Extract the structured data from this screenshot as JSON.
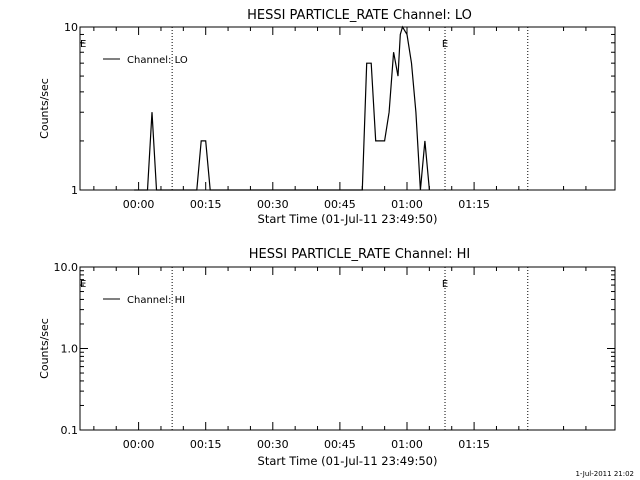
{
  "footer_timestamp": "1-Jul-2011 21:02",
  "chart_data": [
    {
      "type": "line",
      "title": "HESSI PARTICLE_RATE Channel: LO",
      "xlabel": "Start Time (01-Jul-11 23:49:50)",
      "ylabel": "Counts/sec",
      "yscale": "log",
      "ylim": [
        1,
        10
      ],
      "xlim_minutes": [
        -13,
        1.93
      ],
      "xlim_note": "minutes relative to 01:00 not printed; x axis shown as times",
      "x_ticks": [
        "00:00",
        "00:15",
        "00:30",
        "00:45",
        "01:00",
        "01:15"
      ],
      "y_ticks": [
        "1",
        "10"
      ],
      "legend": {
        "position": "top-left",
        "label": "Channel: LO"
      },
      "markers": [
        {
          "label": "E",
          "at": "start"
        },
        {
          "label": "E",
          "at": "eclipse"
        }
      ],
      "series": [
        {
          "name": "Channel: LO",
          "points": [
            [
              "23:59",
              1
            ],
            [
              "00:02",
              1
            ],
            [
              "00:03",
              3
            ],
            [
              "00:04",
              1
            ],
            [
              "00:13",
              1
            ],
            [
              "00:14",
              2
            ],
            [
              "00:15",
              2
            ],
            [
              "00:16",
              1
            ],
            [
              "00:50",
              1
            ],
            [
              "00:51",
              6
            ],
            [
              "00:52",
              6
            ],
            [
              "00:53",
              2
            ],
            [
              "00:55",
              2
            ],
            [
              "00:56",
              3
            ],
            [
              "00:57",
              7
            ],
            [
              "00:58",
              5
            ],
            [
              "00:58.5",
              9
            ],
            [
              "00:59",
              10
            ],
            [
              "01:00",
              9
            ],
            [
              "01:01",
              6
            ],
            [
              "01:02",
              3
            ],
            [
              "01:03",
              1
            ],
            [
              "01:04",
              2
            ],
            [
              "01:05",
              1
            ]
          ]
        }
      ]
    },
    {
      "type": "line",
      "title": "HESSI PARTICLE_RATE Channel: HI",
      "xlabel": "Start Time (01-Jul-11 23:49:50)",
      "ylabel": "Counts/sec",
      "yscale": "log",
      "ylim": [
        0.1,
        10
      ],
      "x_ticks": [
        "00:00",
        "00:15",
        "00:30",
        "00:45",
        "01:00",
        "01:15"
      ],
      "y_ticks": [
        "0.1",
        "1.0",
        "10.0"
      ],
      "legend": {
        "position": "top-left",
        "label": "Channel: HI"
      },
      "markers": [
        {
          "label": "E",
          "at": "start"
        },
        {
          "label": "E",
          "at": "eclipse"
        }
      ],
      "series": [
        {
          "name": "Channel: HI",
          "points": []
        }
      ]
    }
  ]
}
